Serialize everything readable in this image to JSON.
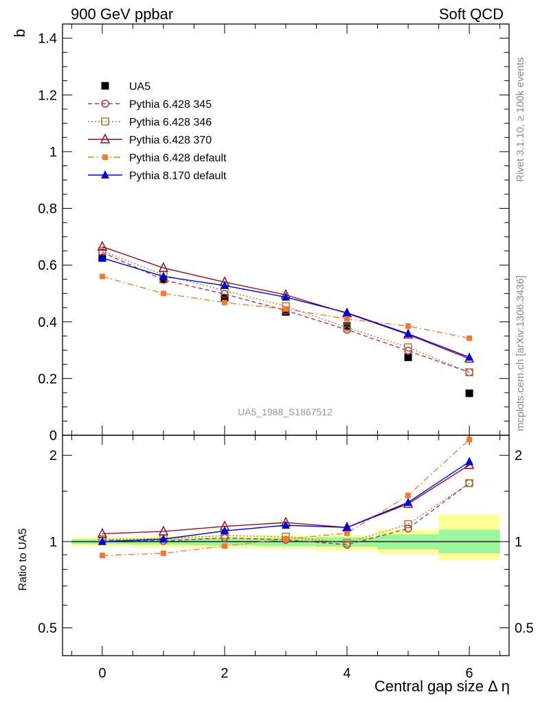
{
  "header": {
    "left_title": "900 GeV ppbar",
    "right_title": "Soft QCD"
  },
  "side_texts": {
    "rivet": "Rivet 3.1.10, ≥ 100k events",
    "mcplots": "mcplots.cern.ch [arXiv:1306.3436]"
  },
  "analysis_tag": "UA5_1988_S1867512",
  "chart_data": [
    {
      "panel": "main",
      "type": "line",
      "ylabel": "b",
      "xlim": [
        -0.65,
        6.65
      ],
      "ylim": [
        0,
        1.45
      ],
      "y_ticks": [
        0,
        0.2,
        0.4,
        0.6,
        0.8,
        1,
        1.2,
        1.4
      ],
      "y_tick_labels": [
        "0",
        "0.2",
        "0.4",
        "0.6",
        "0.8",
        "1",
        "1.2",
        "1.4"
      ],
      "legend_position": "upper-left",
      "x": [
        0,
        1,
        2,
        3,
        4,
        5,
        6
      ],
      "series": [
        {
          "name": "UA5",
          "color": "#000000",
          "marker": "filled-square",
          "line": "none",
          "values": [
            0.625,
            0.55,
            0.485,
            0.435,
            0.385,
            0.275,
            0.148
          ]
        },
        {
          "name": "Pythia 6.428 345",
          "color": "#b3304a",
          "marker": "open-circle",
          "line": "dashed",
          "values": [
            0.645,
            0.548,
            0.498,
            0.44,
            0.372,
            0.298,
            0.222
          ]
        },
        {
          "name": "Pythia 6.428 346",
          "color": "#9e7a3c",
          "marker": "open-square",
          "line": "dotted",
          "values": [
            0.65,
            0.565,
            0.51,
            0.455,
            0.38,
            0.31,
            0.222
          ]
        },
        {
          "name": "Pythia 6.428 370",
          "color": "#8b0f1e",
          "marker": "open-triangle",
          "line": "solid",
          "values": [
            0.665,
            0.59,
            0.54,
            0.495,
            0.43,
            0.355,
            0.27
          ]
        },
        {
          "name": "Pythia 6.428 default",
          "color": "#f07a30",
          "marker": "filled-square-small",
          "line": "dashdot",
          "values": [
            0.56,
            0.5,
            0.468,
            0.445,
            0.41,
            0.385,
            0.342
          ]
        },
        {
          "name": "Pythia 8.170 default",
          "color": "#0000d4",
          "marker": "filled-triangle",
          "line": "solid",
          "values": [
            0.625,
            0.56,
            0.528,
            0.487,
            0.432,
            0.358,
            0.275
          ]
        }
      ]
    },
    {
      "panel": "ratio",
      "type": "line",
      "ylabel": "Ratio to UA5",
      "xlabel": "Central gap size",
      "xlabel_symbol": "Δ η",
      "scale": "log",
      "xlim": [
        -0.65,
        6.65
      ],
      "ylim": [
        0.4,
        2.35
      ],
      "x_ticks": [
        0,
        2,
        4,
        6
      ],
      "x_tick_labels": [
        "0",
        "2",
        "4",
        "6"
      ],
      "y_ticks": [
        0.5,
        1,
        2
      ],
      "y_tick_labels": [
        "0.5",
        "1",
        "2"
      ],
      "reference_line": 1,
      "uncertainty_bands": [
        {
          "x": [
            -0.5,
            0.5
          ],
          "inner": [
            0.98,
            1.02
          ],
          "outer": [
            0.965,
            1.035
          ]
        },
        {
          "x": [
            0.5,
            1.5
          ],
          "inner": [
            0.975,
            1.025
          ],
          "outer": [
            0.955,
            1.04
          ]
        },
        {
          "x": [
            1.5,
            2.5
          ],
          "inner": [
            0.97,
            1.03
          ],
          "outer": [
            0.95,
            1.045
          ]
        },
        {
          "x": [
            2.5,
            3.5
          ],
          "inner": [
            0.965,
            1.03
          ],
          "outer": [
            0.945,
            1.05
          ]
        },
        {
          "x": [
            3.5,
            4.5
          ],
          "inner": [
            0.96,
            1.035
          ],
          "outer": [
            0.93,
            1.055
          ]
        },
        {
          "x": [
            4.5,
            5.5
          ],
          "inner": [
            0.94,
            1.06
          ],
          "outer": [
            0.905,
            1.1
          ]
        },
        {
          "x": [
            5.5,
            6.5
          ],
          "inner": [
            0.91,
            1.1
          ],
          "outer": [
            0.86,
            1.24
          ]
        }
      ],
      "x": [
        0,
        1,
        2,
        3,
        4,
        5,
        6
      ],
      "series": [
        {
          "name": "Pythia 6.428 345",
          "values": [
            1.01,
            1.005,
            1.03,
            1.015,
            0.975,
            1.11,
            1.6
          ]
        },
        {
          "name": "Pythia 6.428 346",
          "values": [
            1.02,
            1.025,
            1.05,
            1.04,
            0.99,
            1.15,
            1.6
          ]
        },
        {
          "name": "Pythia 6.428 370",
          "values": [
            1.065,
            1.085,
            1.13,
            1.165,
            1.12,
            1.355,
            1.85
          ]
        },
        {
          "name": "Pythia 6.428 default",
          "values": [
            0.895,
            0.91,
            0.965,
            1.02,
            1.07,
            1.45,
            2.27
          ]
        },
        {
          "name": "Pythia 8.170 default",
          "values": [
            1.0,
            1.02,
            1.09,
            1.14,
            1.12,
            1.37,
            1.9
          ]
        }
      ]
    }
  ]
}
